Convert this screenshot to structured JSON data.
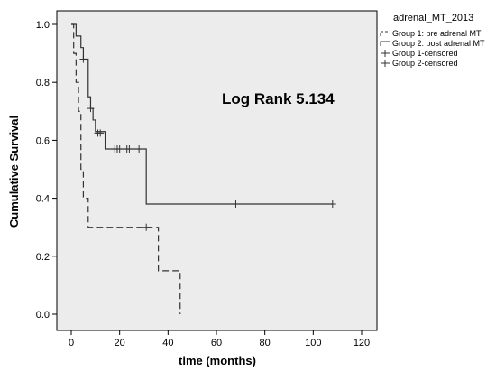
{
  "chart_data": {
    "type": "line",
    "subtype": "kaplan-meier",
    "xlabel": "time (months)",
    "ylabel": "Cumulative Survival",
    "xlim": [
      0,
      120
    ],
    "ylim": [
      0.0,
      1.0
    ],
    "xticks": [
      "0",
      "20",
      "40",
      "60",
      "80",
      "100",
      "120"
    ],
    "yticks": [
      "0.0",
      "0.2",
      "0.4",
      "0.6",
      "0.8",
      "1.0"
    ],
    "grid": false,
    "legend_title": "adrenal_MT_2013",
    "legend_position": "top-right-outside",
    "annotation": "Log Rank 5.134",
    "colors": {
      "plot_bg": "#ececec",
      "line": "#333333"
    },
    "series": [
      {
        "name": "Group 1: pre adrenal MT",
        "style": "solid",
        "steps": [
          [
            0,
            1.0
          ],
          [
            2,
            0.96
          ],
          [
            4,
            0.92
          ],
          [
            5,
            0.88
          ],
          [
            7,
            0.75
          ],
          [
            8,
            0.71
          ],
          [
            9,
            0.67
          ],
          [
            10,
            0.63
          ],
          [
            14,
            0.57
          ],
          [
            31,
            0.38
          ],
          [
            108,
            0.38
          ]
        ],
        "censored": [
          [
            5,
            0.88
          ],
          [
            8,
            0.71
          ],
          [
            11,
            0.625
          ],
          [
            12,
            0.625
          ],
          [
            18,
            0.57
          ],
          [
            19,
            0.57
          ],
          [
            20,
            0.57
          ],
          [
            23,
            0.57
          ],
          [
            24,
            0.57
          ],
          [
            28,
            0.57
          ],
          [
            68,
            0.38
          ],
          [
            108,
            0.38
          ]
        ]
      },
      {
        "name": "Group 2: post adrenal MT",
        "style": "dashed",
        "steps": [
          [
            0,
            1.0
          ],
          [
            1,
            0.9
          ],
          [
            2,
            0.8
          ],
          [
            3,
            0.7
          ],
          [
            4,
            0.5
          ],
          [
            5,
            0.4
          ],
          [
            7,
            0.3
          ],
          [
            36,
            0.15
          ],
          [
            45,
            0.0
          ]
        ],
        "censored": [
          [
            31,
            0.3
          ]
        ]
      }
    ],
    "legend_entries": [
      "Group 1: pre adrenal MT",
      "Group 2: post adrenal MT",
      "Group 1-censored",
      "Group 2-censored"
    ]
  }
}
